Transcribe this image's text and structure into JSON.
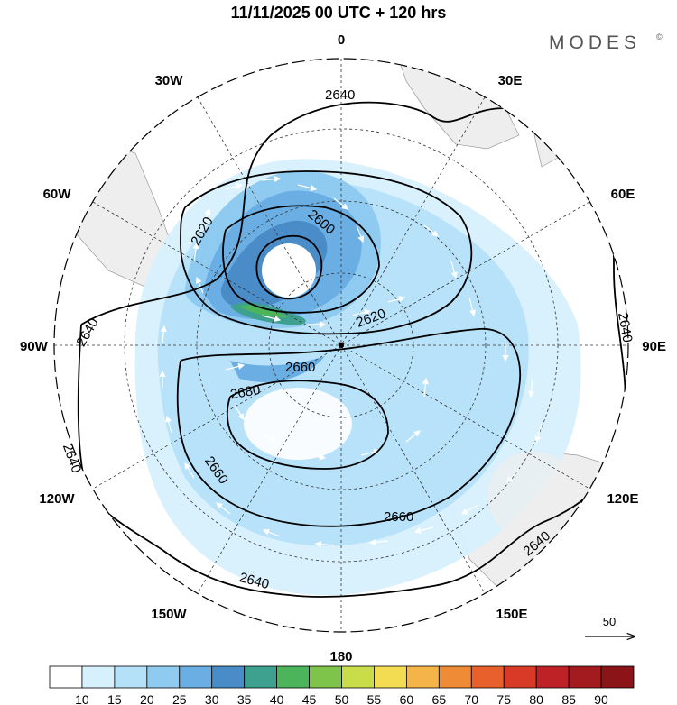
{
  "header": {
    "title": "11/11/2025  00 UTC  + 120 hrs",
    "brand": "MODES",
    "brand_mark": "©"
  },
  "map": {
    "projection": "south-polar-stereographic",
    "meridian_labels": {
      "top": "0",
      "bottom": "180",
      "left": "90W",
      "right": "90E",
      "upper_left_1": "30W",
      "upper_left_2": "60W",
      "upper_right_1": "30E",
      "upper_right_2": "60E",
      "lower_left_1": "120W",
      "lower_left_2": "150W",
      "lower_right_1": "120E",
      "lower_right_2": "150E"
    },
    "contour_labels": {
      "c1": "2640",
      "c2": "2620",
      "c3": "2600",
      "c4": "2620",
      "c5": "2640",
      "c6": "2660",
      "c7": "2680",
      "c8": "2640",
      "c9": "2660",
      "c10": "2660",
      "c11": "2640",
      "c12": "2640",
      "c13": "2640"
    },
    "reference_vector": "50"
  },
  "colorbar": {
    "levels": [
      "10",
      "15",
      "20",
      "25",
      "30",
      "35",
      "40",
      "45",
      "50",
      "55",
      "60",
      "65",
      "70",
      "75",
      "80",
      "85",
      "90"
    ],
    "colors": [
      "#ffffff",
      "#d6f0fc",
      "#b4e0f8",
      "#8fcbf1",
      "#6aaee3",
      "#4a8cc8",
      "#3ea08f",
      "#4cb55b",
      "#7ec44a",
      "#c9dd4b",
      "#f4dc52",
      "#f4b447",
      "#ef8b37",
      "#e8602c",
      "#d93a28",
      "#be2226",
      "#a31a1f",
      "#8a1418"
    ]
  }
}
